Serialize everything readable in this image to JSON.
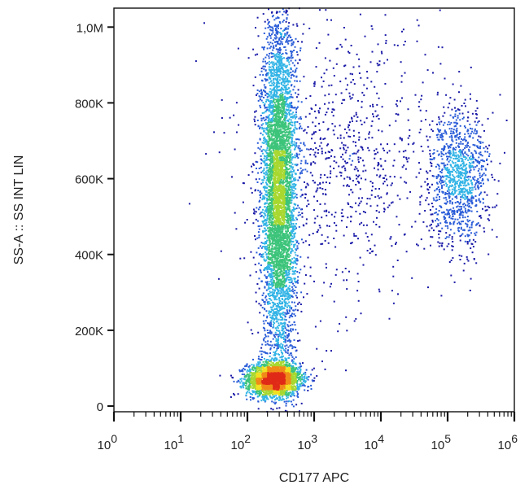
{
  "chart_data": {
    "type": "scatter",
    "subtype": "flow-cytometry density dot plot",
    "title": "",
    "xlabel": "CD177 APC",
    "ylabel": "SS-A :: SS INT LIN",
    "x_scale": "log",
    "x_range": [
      1,
      1000000
    ],
    "x_ticks": [
      {
        "value": 1,
        "base": "10",
        "exp": "0"
      },
      {
        "value": 10,
        "base": "10",
        "exp": "1"
      },
      {
        "value": 100,
        "base": "10",
        "exp": "2"
      },
      {
        "value": 1000,
        "base": "10",
        "exp": "3"
      },
      {
        "value": 10000,
        "base": "10",
        "exp": "4"
      },
      {
        "value": 100000,
        "base": "10",
        "exp": "5"
      },
      {
        "value": 1000000,
        "base": "10",
        "exp": "6"
      }
    ],
    "y_scale": "linear",
    "y_range": [
      -15000,
      1050000
    ],
    "y_ticks": [
      {
        "value": 0,
        "label": "0"
      },
      {
        "value": 200000,
        "label": "200K"
      },
      {
        "value": 400000,
        "label": "400K"
      },
      {
        "value": 600000,
        "label": "600K"
      },
      {
        "value": 800000,
        "label": "800K"
      },
      {
        "value": 1000000,
        "label": "1,0M"
      }
    ],
    "grid": false,
    "colormap": [
      "#1a1aa8",
      "#2a5cd8",
      "#32b4e6",
      "#3cc47a",
      "#a8d830",
      "#f0e020",
      "#f08a18",
      "#e02a18"
    ],
    "populations": [
      {
        "id": "low-scatter-cluster",
        "x_center": 250,
        "y_center": 70000,
        "x_spread_decades": 0.2,
        "y_spread": 22000,
        "count": 2600,
        "peak_density": "high"
      },
      {
        "id": "column-granulocytes",
        "x_center": 300,
        "y_center": 560000,
        "x_spread_decades": 0.13,
        "y_spread": 230000,
        "count": 5200,
        "peak_density": "medium"
      },
      {
        "id": "cd177-positive",
        "x_center": 150000,
        "y_center": 600000,
        "x_spread_decades": 0.22,
        "y_spread": 90000,
        "count": 1100,
        "peak_density": "low-medium"
      },
      {
        "id": "diffuse-scatter",
        "x_center": 3000,
        "y_center": 650000,
        "x_spread_decades": 0.75,
        "y_spread": 180000,
        "count": 900,
        "peak_density": "low"
      }
    ]
  }
}
